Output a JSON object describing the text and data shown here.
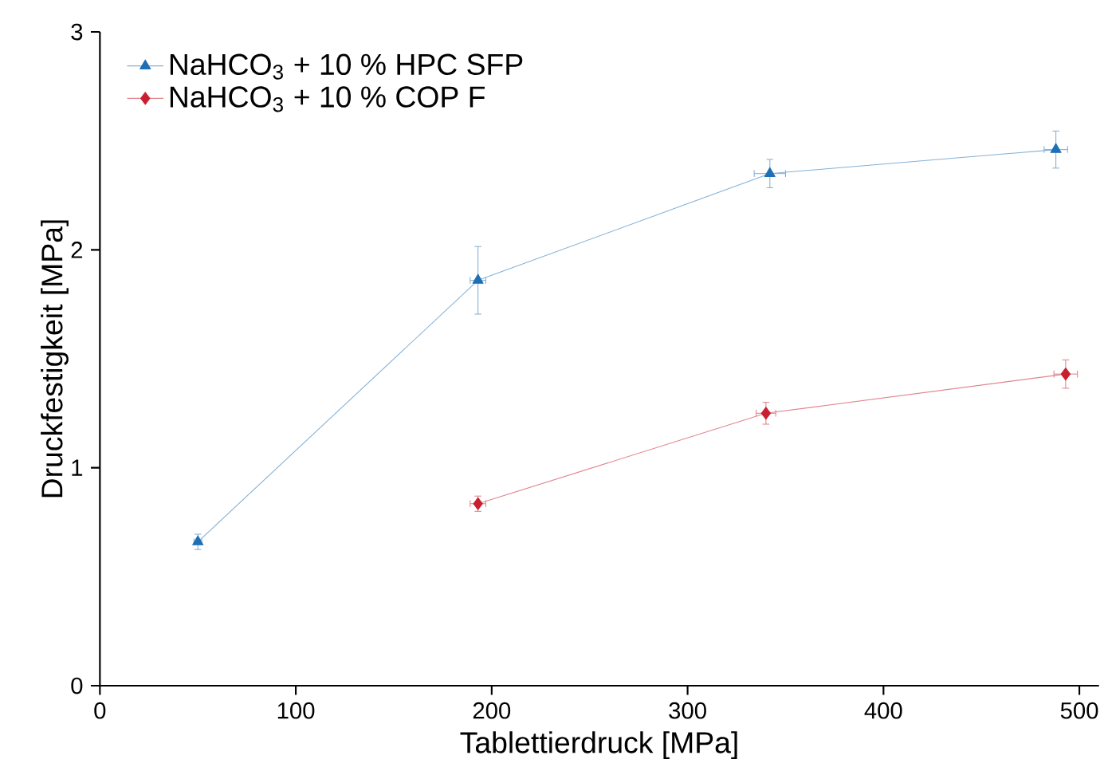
{
  "chart_data": {
    "type": "line",
    "xlabel": "Tablettierdruck [MPa]",
    "ylabel": "Druckfestigkeit [MPa]",
    "xlim": [
      0,
      510
    ],
    "ylim": [
      0,
      3
    ],
    "xticks": [
      0,
      100,
      200,
      300,
      400,
      500
    ],
    "yticks": [
      0,
      1,
      2,
      3
    ],
    "legend": "top left",
    "grid": false,
    "line_style": "solid",
    "series": [
      {
        "name": "NaHCO$_{3}$ + 10 % HPC SFP",
        "color": "#1f6fb5",
        "marker": "triangle",
        "x": [
          50,
          193,
          342,
          488
        ],
        "values": [
          0.66,
          1.86,
          2.35,
          2.46
        ],
        "errors": [
          0.035,
          0.155,
          0.065,
          0.085
        ],
        "xerrors": [
          2,
          4,
          8,
          6
        ]
      },
      {
        "name": "NaHCO$_{3}$ + 10 % COP F",
        "color": "#c8202f",
        "marker": "diamond",
        "x": [
          193,
          340,
          493
        ],
        "values": [
          0.835,
          1.25,
          1.43
        ],
        "errors": [
          0.035,
          0.05,
          0.065
        ],
        "xerrors": [
          4,
          5,
          6
        ]
      }
    ]
  }
}
